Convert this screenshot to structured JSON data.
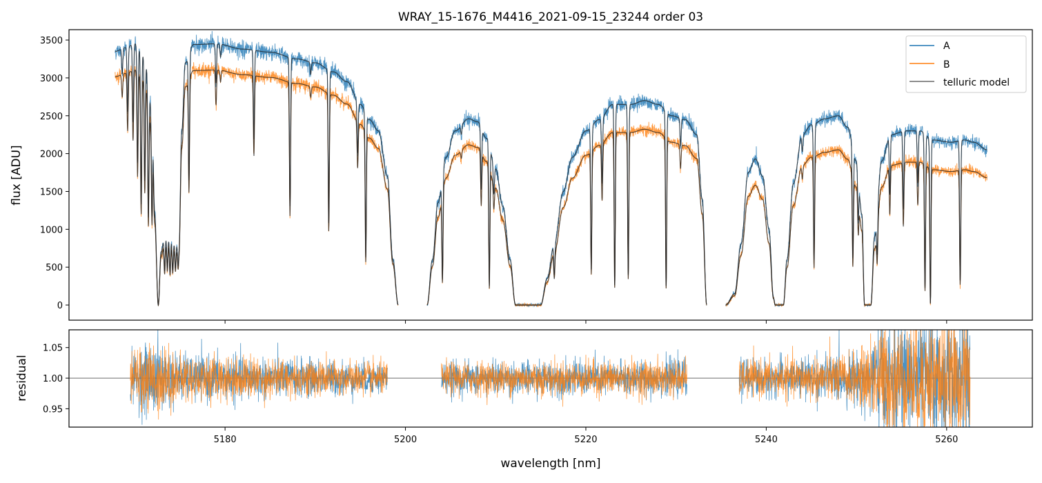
{
  "chart_data": [
    {
      "type": "line",
      "panel": "flux",
      "title": "WRAY_15-1676_M4416_2021-09-15_23244  order 03",
      "xlabel": "",
      "ylabel": "flux [ADU]",
      "xlim": [
        5162.7,
        5269.5
      ],
      "ylim": [
        -200,
        3637
      ],
      "xticks": [
        5180,
        5200,
        5220,
        5240,
        5260
      ],
      "yticks": [
        0,
        500,
        1000,
        1500,
        2000,
        2500,
        3000,
        3500
      ],
      "legend": {
        "placement": "top-right",
        "entries": [
          "A",
          "B",
          "telluric model"
        ]
      },
      "series": [
        {
          "name": "A",
          "color": "#1f77b4",
          "noise_std": 45
        },
        {
          "name": "B",
          "color": "#ff7f0e",
          "noise_std": 40
        },
        {
          "name": "telluric model",
          "color": "#333333"
        }
      ],
      "segments": [
        {
          "range": [
            5167.8,
            5199.2
          ],
          "B_ratio": 0.9,
          "A_continuum": [
            [
              5167.8,
              3350
            ],
            [
              5169,
              3400
            ],
            [
              5170,
              3450
            ],
            [
              5171,
              3300
            ],
            [
              5171.9,
              2600
            ],
            [
              5172.2,
              1200
            ],
            [
              5172.6,
              0
            ],
            [
              5172.9,
              700
            ],
            [
              5173.3,
              900
            ],
            [
              5174.9,
              800
            ],
            [
              5175.2,
              2300
            ],
            [
              5175.6,
              3200
            ],
            [
              5176.5,
              3440
            ],
            [
              5179,
              3450
            ],
            [
              5182,
              3380
            ],
            [
              5185,
              3340
            ],
            [
              5188,
              3250
            ],
            [
              5190,
              3200
            ],
            [
              5192,
              3080
            ],
            [
              5193.5,
              2950
            ],
            [
              5195,
              2650
            ],
            [
              5196,
              2450
            ],
            [
              5197,
              2300
            ],
            [
              5198,
              1700
            ],
            [
              5198.6,
              600
            ],
            [
              5199.2,
              0
            ]
          ]
        },
        {
          "range": [
            5202.4,
            5233.4
          ],
          "B_ratio": 0.86,
          "A_continuum": [
            [
              5202.4,
              0
            ],
            [
              5203.0,
              600
            ],
            [
              5203.6,
              1350
            ],
            [
              5204.5,
              1950
            ],
            [
              5205.5,
              2300
            ],
            [
              5207,
              2460
            ],
            [
              5208,
              2420
            ],
            [
              5209,
              2200
            ],
            [
              5210,
              1800
            ],
            [
              5210.8,
              1300
            ],
            [
              5211.6,
              600
            ],
            [
              5212.2,
              0
            ],
            [
              5215.0,
              0
            ],
            [
              5215.7,
              350
            ],
            [
              5216.5,
              800
            ],
            [
              5217.5,
              1500
            ],
            [
              5218.5,
              1950
            ],
            [
              5220,
              2300
            ],
            [
              5221.5,
              2450
            ],
            [
              5223,
              2650
            ],
            [
              5225,
              2650
            ],
            [
              5226.5,
              2700
            ],
            [
              5228,
              2650
            ],
            [
              5229.5,
              2500
            ],
            [
              5231,
              2450
            ],
            [
              5232.3,
              2250
            ],
            [
              5232.9,
              1400
            ],
            [
              5233.4,
              0
            ]
          ]
        },
        {
          "range": [
            5235.5,
            5264.5
          ],
          "B_ratio": 0.82,
          "A_continuum": [
            [
              5235.5,
              0
            ],
            [
              5236.5,
              150
            ],
            [
              5237.2,
              800
            ],
            [
              5238,
              1750
            ],
            [
              5238.8,
              1930
            ],
            [
              5239.6,
              1700
            ],
            [
              5240.3,
              1000
            ],
            [
              5240.8,
              100
            ],
            [
              5241,
              0
            ],
            [
              5241.9,
              0
            ],
            [
              5242.3,
              600
            ],
            [
              5243,
              1600
            ],
            [
              5244,
              2250
            ],
            [
              5245,
              2380
            ],
            [
              5246.5,
              2460
            ],
            [
              5248,
              2500
            ],
            [
              5249,
              2350
            ],
            [
              5250,
              1900
            ],
            [
              5250.6,
              1200
            ],
            [
              5250.9,
              0
            ],
            [
              5251.6,
              0
            ],
            [
              5252,
              900
            ],
            [
              5252.8,
              1900
            ],
            [
              5253.8,
              2250
            ],
            [
              5255.5,
              2300
            ],
            [
              5257,
              2300
            ],
            [
              5258.5,
              2180
            ],
            [
              5260.5,
              2150
            ],
            [
              5262,
              2180
            ],
            [
              5263,
              2150
            ],
            [
              5264.5,
              2050
            ]
          ]
        }
      ],
      "absorption_lines": [
        [
          5168.6,
          0.1
        ],
        [
          5169.2,
          0.25
        ],
        [
          5169.8,
          0.3
        ],
        [
          5170.3,
          0.45
        ],
        [
          5170.7,
          0.6
        ],
        [
          5171.1,
          0.5
        ],
        [
          5171.5,
          0.6
        ],
        [
          5171.9,
          0.55
        ],
        [
          5173.3,
          0.5
        ],
        [
          5173.6,
          0.45
        ],
        [
          5173.9,
          0.5
        ],
        [
          5174.2,
          0.45
        ],
        [
          5174.5,
          0.4
        ],
        [
          5174.8,
          0.35
        ],
        [
          5176.0,
          0.5
        ],
        [
          5179.0,
          0.15
        ],
        [
          5179.5,
          0.05
        ],
        [
          5183.2,
          0.35
        ],
        [
          5187.2,
          0.6
        ],
        [
          5189.5,
          0.05
        ],
        [
          5191.5,
          0.65
        ],
        [
          5194.7,
          0.25
        ],
        [
          5195.6,
          0.75
        ],
        [
          5204.1,
          0.8
        ],
        [
          5206.2,
          0.05
        ],
        [
          5208.4,
          0.35
        ],
        [
          5209.3,
          0.88
        ],
        [
          5209.8,
          0.2
        ],
        [
          5216.5,
          0.5
        ],
        [
          5220.6,
          0.8
        ],
        [
          5221.8,
          0.35
        ],
        [
          5223.2,
          0.9
        ],
        [
          5224.7,
          0.85
        ],
        [
          5228.9,
          0.9
        ],
        [
          5230.5,
          0.15
        ],
        [
          5244.0,
          0.1
        ],
        [
          5245.3,
          0.75
        ],
        [
          5249.6,
          0.7
        ],
        [
          5250.2,
          0.35
        ],
        [
          5252.3,
          0.45
        ],
        [
          5253.7,
          0.35
        ],
        [
          5255.2,
          0.45
        ],
        [
          5256.8,
          0.3
        ],
        [
          5257.6,
          0.9
        ],
        [
          5258.2,
          0.99
        ],
        [
          5261.5,
          0.85
        ]
      ]
    },
    {
      "type": "line",
      "panel": "residual",
      "xlabel": "wavelength [nm]",
      "ylabel": "residual",
      "xlim": [
        5162.7,
        5269.5
      ],
      "ylim": [
        0.92,
        1.079
      ],
      "xticks": [
        5180,
        5200,
        5220,
        5240,
        5260
      ],
      "xticklabels": [
        "5180",
        "5200",
        "5220",
        "5240",
        "5260"
      ],
      "yticks": [
        0.95,
        1.0,
        1.05
      ],
      "yticklabels": [
        "0.95",
        "1.00",
        "1.05"
      ],
      "reference_line": 1.0,
      "segments": [
        [
          5169.5,
          5198.0
        ],
        [
          5204.0,
          5231.2
        ],
        [
          5237.0,
          5262.6
        ]
      ],
      "scatter_std": [
        [
          5169.5,
          0.02
        ],
        [
          5172,
          0.03
        ],
        [
          5176,
          0.018
        ],
        [
          5200,
          0.013
        ],
        [
          5240,
          0.015
        ],
        [
          5250,
          0.02
        ],
        [
          5253,
          0.045
        ],
        [
          5262.6,
          0.05
        ]
      ],
      "series": [
        {
          "name": "A",
          "color": "#1f77b4"
        },
        {
          "name": "B",
          "color": "#ff7f0e"
        }
      ]
    }
  ],
  "ytick_labels_top": [
    "0",
    "500",
    "1000",
    "1500",
    "2000",
    "2500",
    "3000",
    "3500"
  ]
}
